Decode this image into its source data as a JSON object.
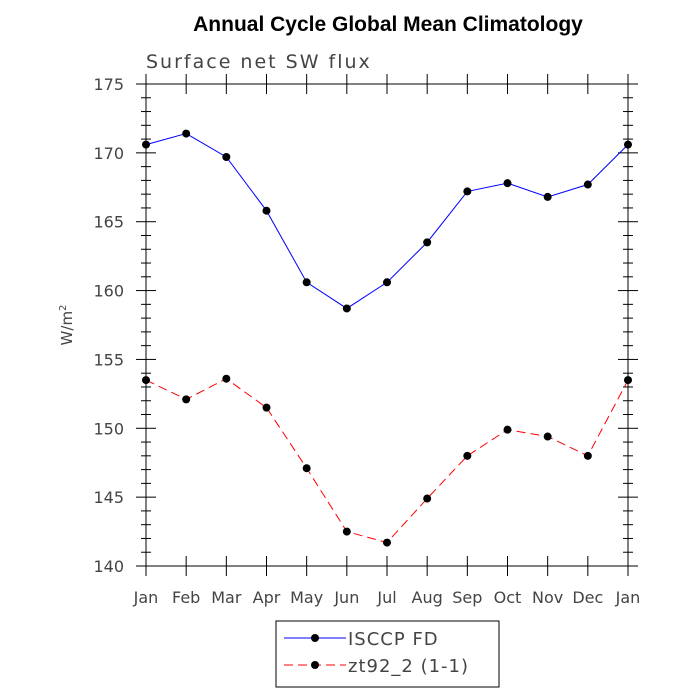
{
  "chart_data": {
    "type": "line",
    "title": "Annual Cycle Global Mean Climatology",
    "subtitle": "Surface net SW flux",
    "ylabel": "W/m",
    "ylabel_sup": "2",
    "xlabel": "",
    "categories": [
      "Jan",
      "Feb",
      "Mar",
      "Apr",
      "May",
      "Jun",
      "Jul",
      "Aug",
      "Sep",
      "Oct",
      "Nov",
      "Dec",
      "Jan"
    ],
    "ylim": [
      140,
      175
    ],
    "yticks": [
      140,
      145,
      150,
      155,
      160,
      165,
      170,
      175
    ],
    "legend_position": "bottom",
    "series": [
      {
        "name": "ISCCP FD",
        "color": "#0000ff",
        "dash": "solid",
        "marker": "dot",
        "values": [
          170.6,
          171.4,
          169.7,
          165.8,
          160.6,
          158.7,
          160.6,
          163.5,
          167.2,
          167.8,
          166.8,
          167.7,
          170.6
        ]
      },
      {
        "name": "zt92_2 (1-1)",
        "color": "#ff0000",
        "dash": "dashed",
        "marker": "dot",
        "values": [
          153.5,
          152.1,
          153.6,
          151.5,
          147.1,
          142.5,
          141.7,
          144.9,
          148.0,
          149.9,
          149.4,
          148.0,
          153.5
        ]
      }
    ]
  }
}
